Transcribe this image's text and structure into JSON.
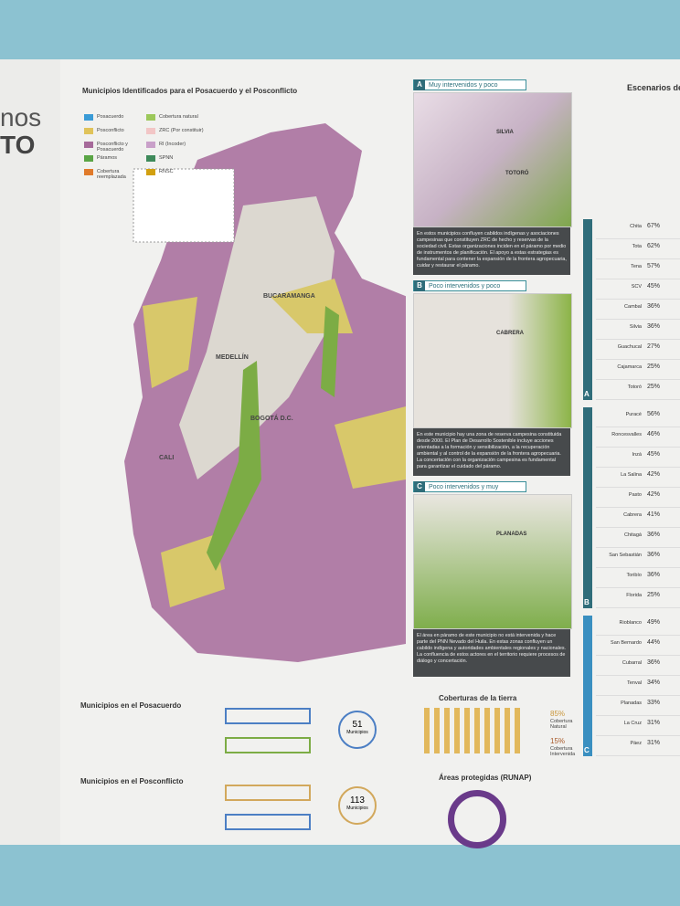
{
  "left": {
    "title_fragments": [
      "nos",
      "TO"
    ]
  },
  "main": {
    "title": "Municipios Identificados para el Posacuerdo y el Posconflicto",
    "legend": [
      "Posacuerdo",
      "Posconflicto",
      "Posconflicto y Posacuerdo",
      "Páramos",
      "Cobertura reemplazada",
      "Cobertura natural",
      "ZRC (Por constituir)",
      "RI (Incoder)",
      "SPNN",
      "RNSC"
    ],
    "cities": [
      "BUCARAMANGA",
      "MEDELLÍN",
      "BOGOTÁ D.C.",
      "CALI"
    ]
  },
  "panels": [
    {
      "letter": "A",
      "title": "Muy intervenidos y poco protegidos:",
      "places": [
        "SILVIA",
        "TOTORÓ"
      ],
      "text": "En estos municipios confluyen cabildos indígenas y asociaciones campesinas que constituyen ZRC de hecho y reservas de la sociedad civil. Estas organizaciones inciden en el páramo por medio de instrumentos de planificación. El apoyo a estas estrategias es fundamental para contener la expansión de la frontera agropecuaria, cuidar y restaurar el páramo."
    },
    {
      "letter": "B",
      "title": "Poco intervenidos y poco protegidos:",
      "places": [
        "CABRERA"
      ],
      "text": "En este municipio hay una zona de reserva campesina constituida desde 2000. El Plan de Desarrollo Sostenible incluye acciones orientadas a la formación y sensibilización, a la recuperación ambiental y al control de la expansión de la frontera agropecuaria. La concertación con la organización campesina es fundamental para garantizar el cuidado del páramo."
    },
    {
      "letter": "C",
      "title": "Poco intervenidos y muy protegidos:",
      "places": [
        "PLANADAS"
      ],
      "text": "El área en páramo de este municipio no está intervenida y hace parte del PNN Nevado del Huila. En estas zonas confluyen un cabildo indígena y autoridades ambientales regionales y nacionales. La confluencia de estos actores en el territorio requiere procesos de diálogo y concertación."
    }
  ],
  "bottom": {
    "posacuerdo_title": "Municipios en el Posacuerdo",
    "posconflicto_title": "Municipios en el Posconflicto",
    "posacuerdo_count": "51",
    "posconflicto_count": "113",
    "count_label": "Municipios",
    "coberturas_title": "Coberturas de la tierra",
    "natural_pct": "85%",
    "natural_label": "Cobertura Natural",
    "intervenida_pct": "15%",
    "intervenida_label": "Cobertura Intervenida",
    "areas_title": "Áreas protegidas (RUNAP)"
  },
  "right": {
    "title": "Escenarios de",
    "groups": [
      {
        "letter": "A",
        "rows": [
          [
            "Chita",
            "67%"
          ],
          [
            "Tota",
            "62%"
          ],
          [
            "Tena",
            "57%"
          ],
          [
            "SCV",
            "45%"
          ],
          [
            "Cambal",
            "36%"
          ],
          [
            "Silvia",
            "36%"
          ],
          [
            "Guachucal",
            "27%"
          ],
          [
            "Cajamarca",
            "25%"
          ],
          [
            "Totoró",
            "25%"
          ]
        ]
      },
      {
        "letter": "B",
        "rows": [
          [
            "Puracé",
            "56%"
          ],
          [
            "Roncesvalles",
            "46%"
          ],
          [
            "Inzá",
            "45%"
          ],
          [
            "La Salina",
            "42%"
          ],
          [
            "Pasto",
            "42%"
          ],
          [
            "Cabrera",
            "41%"
          ],
          [
            "Chitagá",
            "36%"
          ],
          [
            "San Sebastián",
            "36%"
          ],
          [
            "Toribío",
            "36%"
          ],
          [
            "Florida",
            "25%"
          ]
        ]
      },
      {
        "letter": "C",
        "rows": [
          [
            "Rioblanco",
            "49%"
          ],
          [
            "San Bernardo",
            "44%"
          ],
          [
            "Cubarral",
            "36%"
          ],
          [
            "Tenval",
            "34%"
          ],
          [
            "Planadas",
            "33%"
          ],
          [
            "La Cruz",
            "31%"
          ],
          [
            "Páez",
            "31%"
          ]
        ]
      }
    ]
  }
}
